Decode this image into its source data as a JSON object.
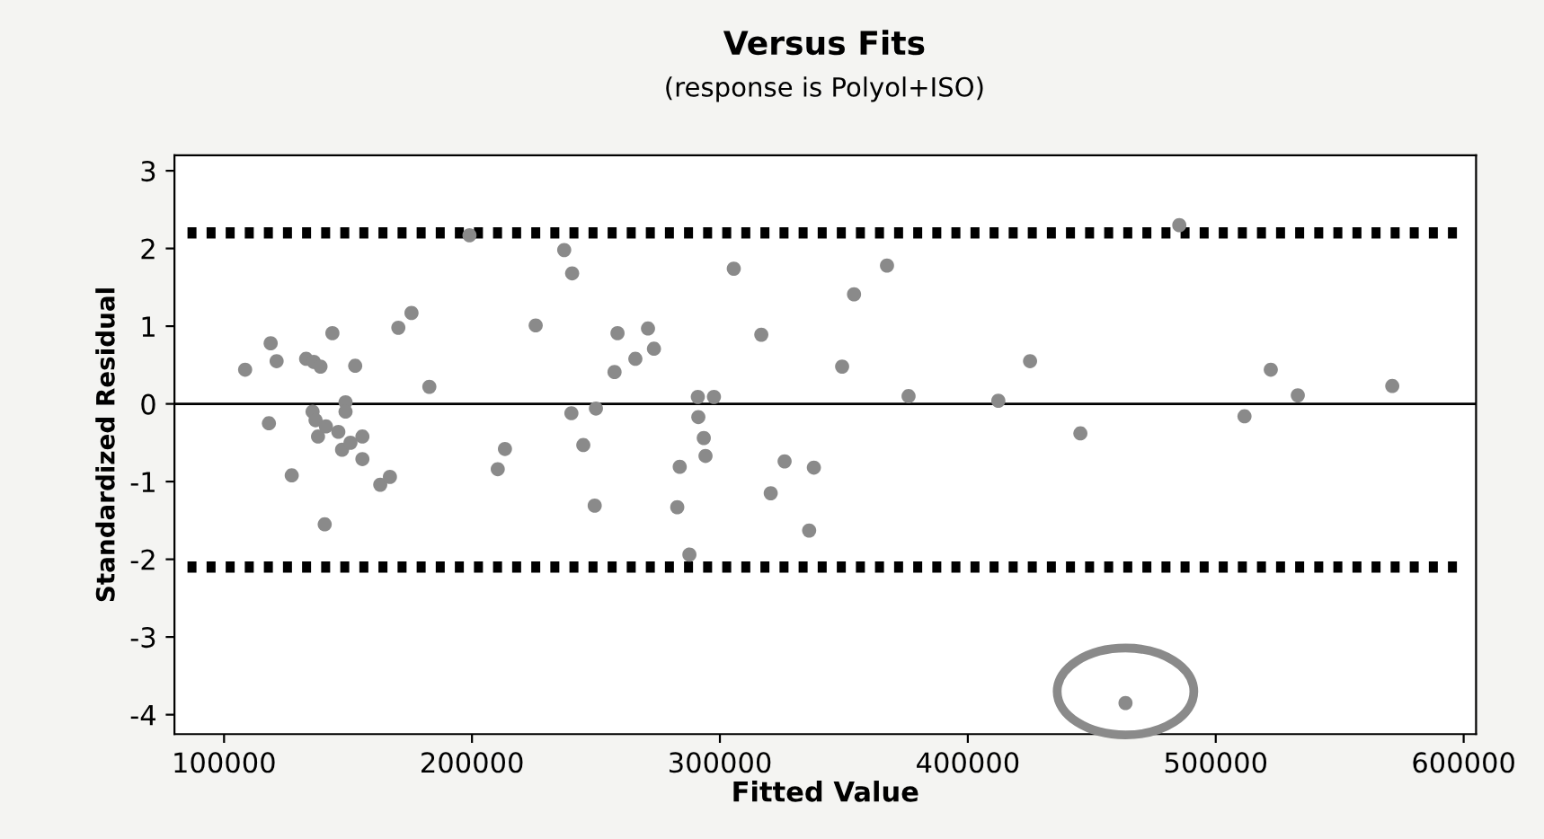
{
  "chart_data": {
    "type": "scatter",
    "title": "Versus Fits",
    "subtitle": "(response is Polyol+ISO)",
    "xlabel": "Fitted Value",
    "ylabel": "Standardized Residual",
    "xlim": [
      80000,
      605000
    ],
    "xticks": [
      100000,
      200000,
      300000,
      400000,
      500000,
      600000
    ],
    "ylim": [
      -4.25,
      3.2
    ],
    "yticks": [
      -4,
      -3,
      -2,
      -1,
      0,
      1,
      2,
      3
    ],
    "grid": false,
    "legend": false,
    "marker": "circle",
    "series": [
      {
        "color": "#8a8a8a",
        "x": [
          108500,
          118800,
          118100,
          121200,
          127300,
          133100,
          136200,
          138900,
          135700,
          136900,
          137900,
          141100,
          140600,
          143700,
          146100,
          147600,
          149000,
          149000,
          151000,
          152900,
          155800,
          155800,
          163000,
          166900,
          170300,
          175600,
          182800,
          199000,
          210400,
          213300,
          225700,
          237200,
          240400,
          240100,
          244900,
          250000,
          249500,
          258700,
          257500,
          265900,
          271000,
          273400,
          282800,
          283800,
          291100,
          297600,
          291300,
          293500,
          294200,
          287700,
          305600,
          316700,
          320500,
          326100,
          337900,
          336000,
          349300,
          354100,
          367400,
          376100,
          412300,
          425100,
          445400,
          485300,
          511600,
          522200,
          533100,
          571200,
          463600
        ],
        "values": [
          0.44,
          0.78,
          -0.25,
          0.55,
          -0.92,
          0.58,
          0.54,
          0.48,
          -0.1,
          -0.21,
          -0.42,
          -0.29,
          -1.55,
          0.91,
          -0.36,
          -0.59,
          0.02,
          -0.1,
          -0.5,
          0.49,
          -0.42,
          -0.71,
          -1.04,
          -0.94,
          0.98,
          1.17,
          0.22,
          2.17,
          -0.84,
          -0.58,
          1.01,
          1.98,
          1.68,
          -0.12,
          -0.53,
          -0.06,
          -1.31,
          0.91,
          0.41,
          0.58,
          0.97,
          0.71,
          -1.33,
          -0.81,
          0.09,
          0.09,
          -0.17,
          -0.44,
          -0.67,
          -1.94,
          1.74,
          0.89,
          -1.15,
          -0.74,
          -0.82,
          -1.63,
          0.48,
          1.41,
          1.78,
          0.1,
          0.04,
          0.55,
          -0.38,
          2.3,
          -0.16,
          0.44,
          0.11,
          0.23,
          -3.85
        ]
      }
    ],
    "ref_lines": [
      {
        "axis": "y",
        "value": 0,
        "color": "#000000",
        "line_style": "solid"
      },
      {
        "axis": "y",
        "value": 2.2,
        "color": "#000000",
        "line_style": "dotted"
      },
      {
        "axis": "y",
        "value": -2.1,
        "color": "#000000",
        "line_style": "dotted"
      }
    ]
  }
}
